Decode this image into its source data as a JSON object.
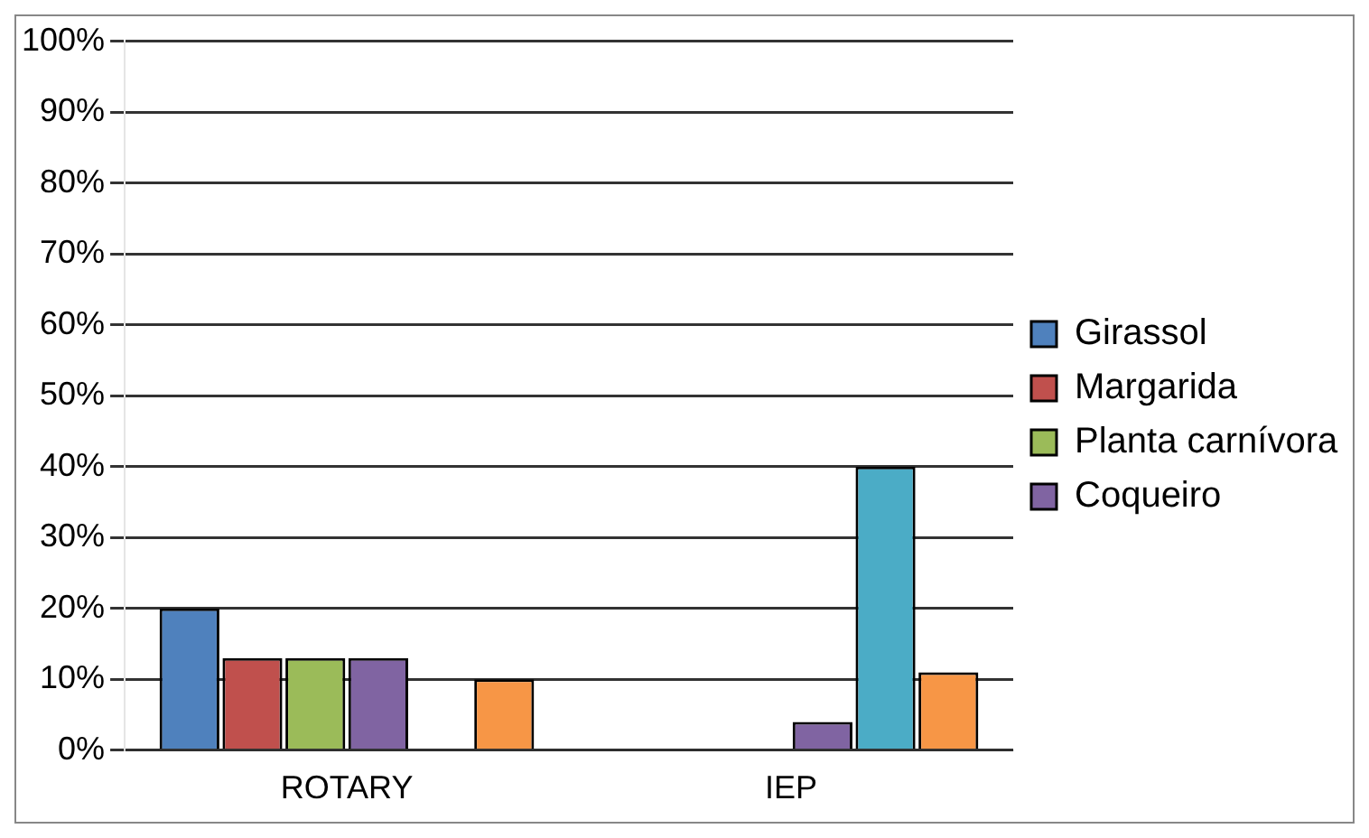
{
  "chart_data": {
    "type": "bar",
    "categories": [
      "ROTARY",
      "IEP"
    ],
    "series": [
      {
        "name": "Girassol",
        "color": "#4f81bd",
        "values": [
          20,
          0
        ]
      },
      {
        "name": "Margarida",
        "color": "#c0504d",
        "values": [
          13,
          0
        ]
      },
      {
        "name": "Planta carnívora",
        "color": "#9bbb59",
        "values": [
          13,
          0
        ]
      },
      {
        "name": "Coqueiro",
        "color": "#8064a2",
        "values": [
          13,
          4
        ]
      },
      {
        "color": "#4bacc6",
        "values": [
          0,
          40
        ]
      },
      {
        "color": "#f79646",
        "values": [
          10,
          11
        ]
      }
    ],
    "ylim": [
      0,
      100
    ],
    "yticks": [
      {
        "value": 0,
        "label": "0%"
      },
      {
        "value": 10,
        "label": "10%"
      },
      {
        "value": 20,
        "label": "20%"
      },
      {
        "value": 30,
        "label": "30%"
      },
      {
        "value": 40,
        "label": "40%"
      },
      {
        "value": 50,
        "label": "50%"
      },
      {
        "value": 60,
        "label": "60%"
      },
      {
        "value": 70,
        "label": "70%"
      },
      {
        "value": 80,
        "label": "80%"
      },
      {
        "value": 90,
        "label": "90%"
      },
      {
        "value": 100,
        "label": "100%"
      }
    ],
    "grid": "y",
    "legend": "right"
  }
}
